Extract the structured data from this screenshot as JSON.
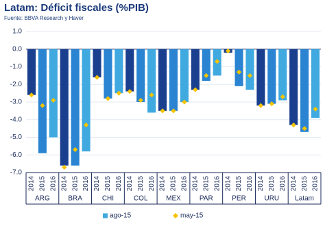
{
  "chart_data": {
    "type": "bar",
    "title": "Latam: Déficit  fiscales (%PIB)",
    "subtitle": "Fuente: BBVA Research y Haver",
    "groups": [
      "ARG",
      "BRA",
      "CHI",
      "COL",
      "MEX",
      "PAR",
      "PER",
      "URU",
      "Latam"
    ],
    "categories": [
      "2014",
      "2015",
      "2016",
      "2014",
      "2015",
      "2016",
      "2014",
      "2015",
      "2016",
      "2014",
      "2015",
      "2016",
      "2014",
      "2015",
      "2016",
      "2014",
      "2015",
      "2016",
      "2014",
      "2015",
      "2016",
      "2014",
      "2015",
      "2016",
      "2014",
      "2015",
      "2016"
    ],
    "series": [
      {
        "name": "ago-15",
        "color": "#3fa9e0",
        "bar_colors": [
          "#1b3f8f",
          "#2a84d2",
          "#3fa9e0"
        ],
        "values": [
          -2.6,
          -5.9,
          -5.0,
          -6.6,
          -6.6,
          -5.8,
          -1.6,
          -2.8,
          -2.5,
          -2.4,
          -3.0,
          -3.6,
          -3.5,
          -3.5,
          -3.0,
          -2.3,
          -1.8,
          -1.5,
          -0.2,
          -2.1,
          -2.3,
          -3.2,
          -3.1,
          -2.9,
          -4.3,
          -4.7,
          -3.9
        ]
      },
      {
        "name": "may-15",
        "color": "#f5c400",
        "values": [
          -2.6,
          -3.2,
          -2.9,
          -6.7,
          -5.7,
          -4.3,
          -1.6,
          -2.8,
          -2.5,
          -2.4,
          -2.9,
          -2.6,
          -3.5,
          -3.5,
          -3.0,
          -2.3,
          -1.5,
          -0.7,
          -0.1,
          -1.3,
          -1.5,
          -3.2,
          -3.1,
          -2.7,
          -4.3,
          -4.5,
          -3.4
        ]
      }
    ],
    "ylim": [
      -7,
      1
    ],
    "yticks": [
      {
        "value": 1,
        "label": "1.0"
      },
      {
        "value": 0,
        "label": "0.0"
      },
      {
        "value": -1,
        "label": "-1.0"
      },
      {
        "value": -2,
        "label": "-2.0"
      },
      {
        "value": -3,
        "label": "-3.0"
      },
      {
        "value": -4,
        "label": "-4.0"
      },
      {
        "value": -5,
        "label": "-5.0"
      },
      {
        "value": -6,
        "label": "-6.0"
      },
      {
        "value": -7,
        "label": "-7.0"
      }
    ],
    "grid": true
  }
}
